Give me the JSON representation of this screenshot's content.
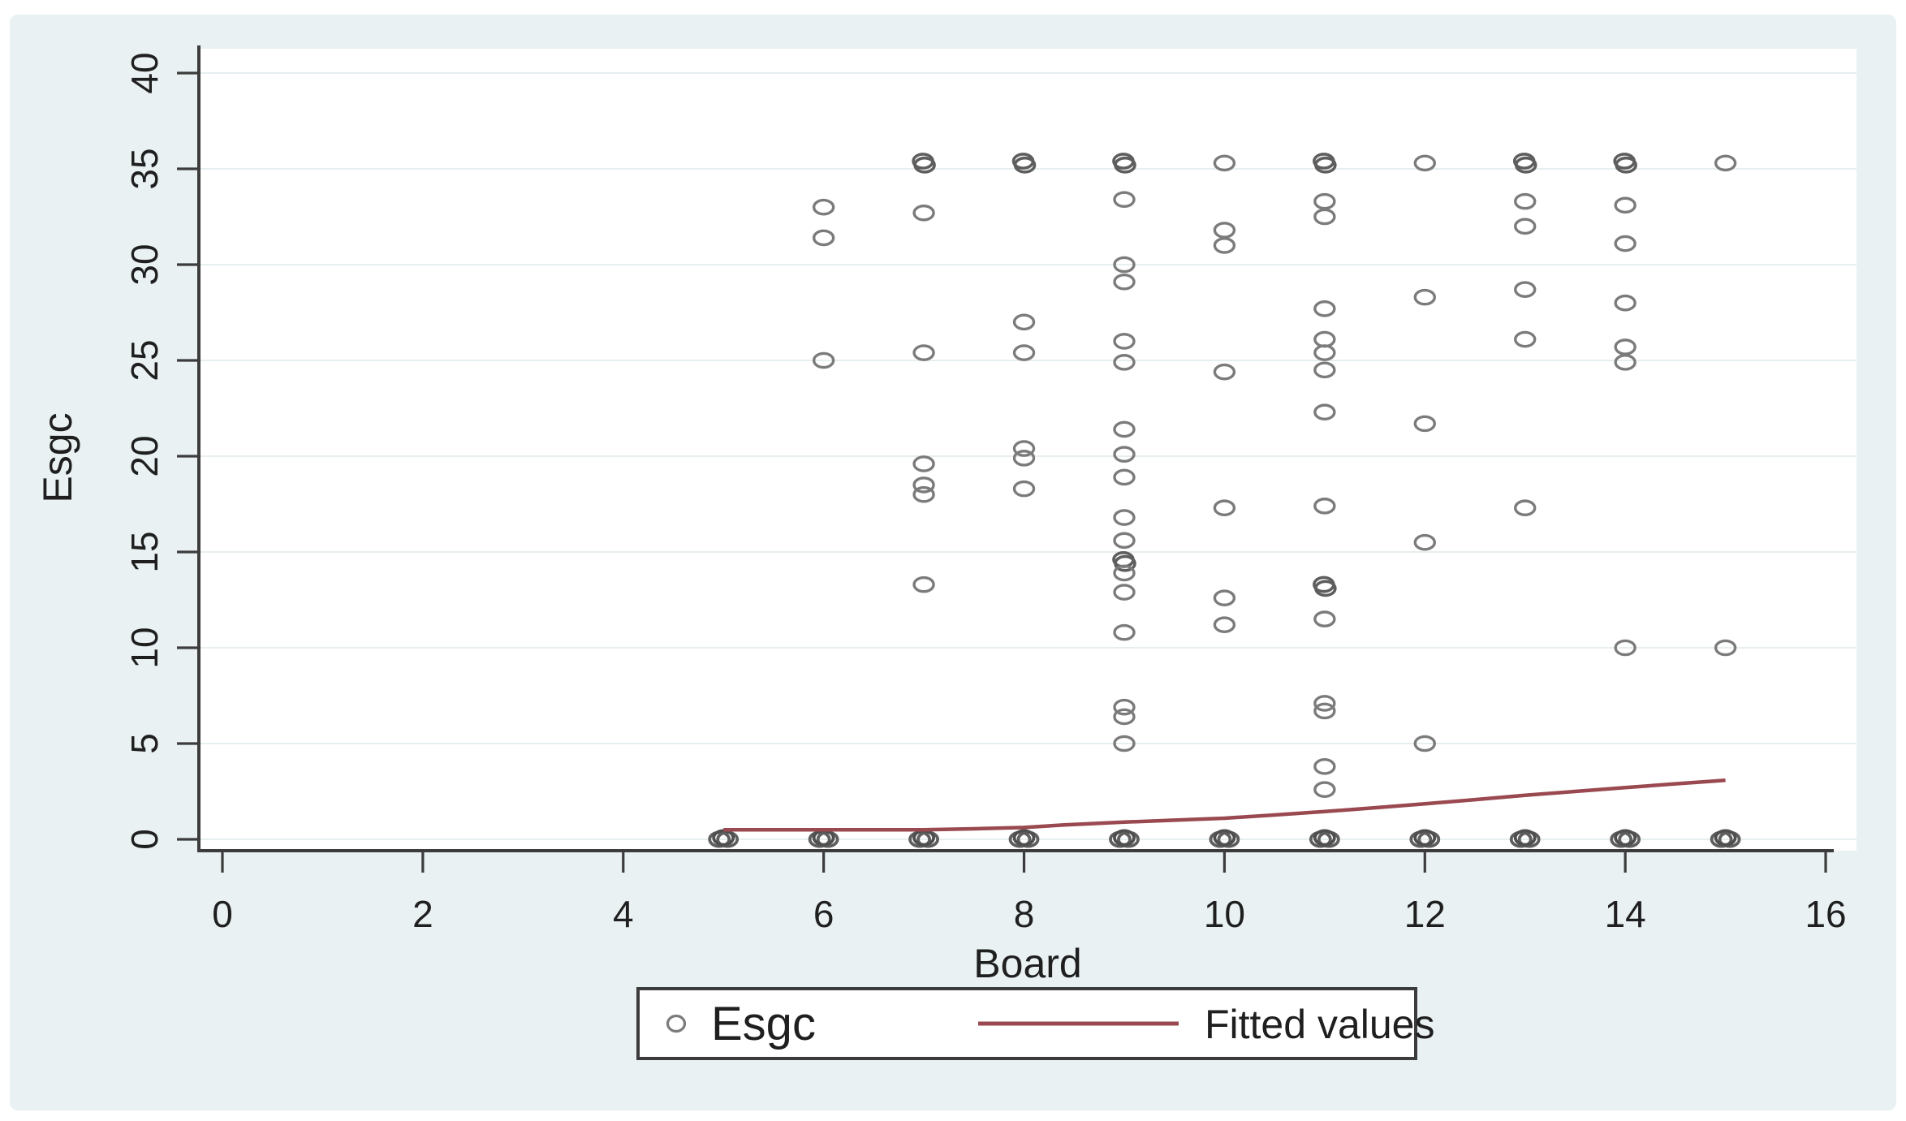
{
  "figure": {
    "panel_bg": "#e9f1f3",
    "plot_bg": "#ffffff",
    "grid_color": "#e7eef0",
    "axis_color": "#3c3c3c",
    "text_color": "#1f1f1f",
    "marker_color": "#7b7b7b",
    "marker_bold_color": "#5e5e5e",
    "fitted_line_color": "#99494f",
    "y_axis_title": "Esgc",
    "x_axis_title": "Board",
    "y_tick_labels": [
      "0",
      "5",
      "10",
      "15",
      "20",
      "25",
      "30",
      "35",
      "40"
    ],
    "x_tick_labels": [
      "0",
      "2",
      "4",
      "6",
      "8",
      "10",
      "12",
      "14",
      "16"
    ],
    "legend": {
      "marker_label": "Esgc",
      "line_label": "Fitted values"
    }
  },
  "chart_data": {
    "type": "scatter",
    "title": "",
    "xlabel": "Board",
    "ylabel": "Esgc",
    "xlim": [
      0,
      16
    ],
    "ylim": [
      0,
      40
    ],
    "x_ticks": [
      0,
      2,
      4,
      6,
      8,
      10,
      12,
      14,
      16
    ],
    "y_ticks": [
      0,
      5,
      10,
      15,
      20,
      25,
      30,
      35,
      40
    ],
    "grid": "horizontal",
    "legend_position": "bottom",
    "series": [
      {
        "name": "Esgc",
        "style": "scatter",
        "note": "points are [board, esgc, overlap_multiplicity]",
        "points": [
          [
            5,
            0,
            3
          ],
          [
            6,
            33.0,
            1
          ],
          [
            6,
            31.4,
            1
          ],
          [
            6,
            25.0,
            1
          ],
          [
            6,
            0,
            3
          ],
          [
            7,
            35.3,
            2
          ],
          [
            7,
            32.7,
            1
          ],
          [
            7,
            25.4,
            1
          ],
          [
            7,
            19.6,
            1
          ],
          [
            7,
            18.5,
            1
          ],
          [
            7,
            18.0,
            1
          ],
          [
            7,
            13.3,
            1
          ],
          [
            7,
            0,
            3
          ],
          [
            8,
            35.3,
            2
          ],
          [
            8,
            27.0,
            1
          ],
          [
            8,
            25.4,
            1
          ],
          [
            8,
            20.4,
            1
          ],
          [
            8,
            19.9,
            1
          ],
          [
            8,
            18.3,
            1
          ],
          [
            8,
            0,
            3
          ],
          [
            9,
            35.3,
            2
          ],
          [
            9,
            33.4,
            1
          ],
          [
            9,
            30.0,
            1
          ],
          [
            9,
            29.1,
            1
          ],
          [
            9,
            26.0,
            1
          ],
          [
            9,
            24.9,
            1
          ],
          [
            9,
            21.4,
            1
          ],
          [
            9,
            20.1,
            1
          ],
          [
            9,
            18.9,
            1
          ],
          [
            9,
            16.8,
            1
          ],
          [
            9,
            15.6,
            1
          ],
          [
            9,
            14.5,
            2
          ],
          [
            9,
            13.9,
            1
          ],
          [
            9,
            12.9,
            1
          ],
          [
            9,
            10.8,
            1
          ],
          [
            9,
            6.9,
            1
          ],
          [
            9,
            6.4,
            1
          ],
          [
            9,
            5.0,
            1
          ],
          [
            9,
            0,
            3
          ],
          [
            10,
            35.3,
            1
          ],
          [
            10,
            31.8,
            1
          ],
          [
            10,
            31.0,
            1
          ],
          [
            10,
            24.4,
            1
          ],
          [
            10,
            17.3,
            1
          ],
          [
            10,
            12.6,
            1
          ],
          [
            10,
            11.2,
            1
          ],
          [
            10,
            0,
            3
          ],
          [
            11,
            35.3,
            2
          ],
          [
            11,
            33.3,
            1
          ],
          [
            11,
            32.5,
            1
          ],
          [
            11,
            27.7,
            1
          ],
          [
            11,
            26.1,
            1
          ],
          [
            11,
            25.4,
            1
          ],
          [
            11,
            24.5,
            1
          ],
          [
            11,
            22.3,
            1
          ],
          [
            11,
            17.4,
            1
          ],
          [
            11,
            13.2,
            2
          ],
          [
            11,
            11.5,
            1
          ],
          [
            11,
            7.1,
            1
          ],
          [
            11,
            6.7,
            1
          ],
          [
            11,
            3.8,
            1
          ],
          [
            11,
            2.6,
            1
          ],
          [
            11,
            0,
            3
          ],
          [
            12,
            35.3,
            1
          ],
          [
            12,
            28.3,
            1
          ],
          [
            12,
            21.7,
            1
          ],
          [
            12,
            15.5,
            1
          ],
          [
            12,
            5.0,
            1
          ],
          [
            12,
            0,
            3
          ],
          [
            13,
            35.3,
            2
          ],
          [
            13,
            33.3,
            1
          ],
          [
            13,
            32.0,
            1
          ],
          [
            13,
            28.7,
            1
          ],
          [
            13,
            26.1,
            1
          ],
          [
            13,
            17.3,
            1
          ],
          [
            13,
            0,
            3
          ],
          [
            14,
            35.3,
            2
          ],
          [
            14,
            33.1,
            1
          ],
          [
            14,
            31.1,
            1
          ],
          [
            14,
            28.0,
            1
          ],
          [
            14,
            25.7,
            1
          ],
          [
            14,
            24.9,
            1
          ],
          [
            14,
            10.0,
            1
          ],
          [
            14,
            0,
            3
          ],
          [
            15,
            35.3,
            1
          ],
          [
            15,
            10.0,
            1
          ],
          [
            15,
            0,
            3
          ]
        ]
      },
      {
        "name": "Fitted values",
        "style": "line",
        "points": [
          [
            5,
            0.5
          ],
          [
            5.5,
            0.5
          ],
          [
            6,
            0.5
          ],
          [
            6.5,
            0.5
          ],
          [
            7,
            0.5
          ],
          [
            7.5,
            0.55
          ],
          [
            8,
            0.62
          ],
          [
            8.4,
            0.75
          ],
          [
            9,
            0.9
          ],
          [
            9.5,
            1.0
          ],
          [
            10,
            1.1
          ],
          [
            10.5,
            1.27
          ],
          [
            11,
            1.45
          ],
          [
            11.5,
            1.65
          ],
          [
            12,
            1.85
          ],
          [
            12.5,
            2.07
          ],
          [
            13,
            2.3
          ],
          [
            13.5,
            2.5
          ],
          [
            14,
            2.7
          ],
          [
            14.5,
            2.9
          ],
          [
            15,
            3.08
          ]
        ]
      }
    ]
  }
}
